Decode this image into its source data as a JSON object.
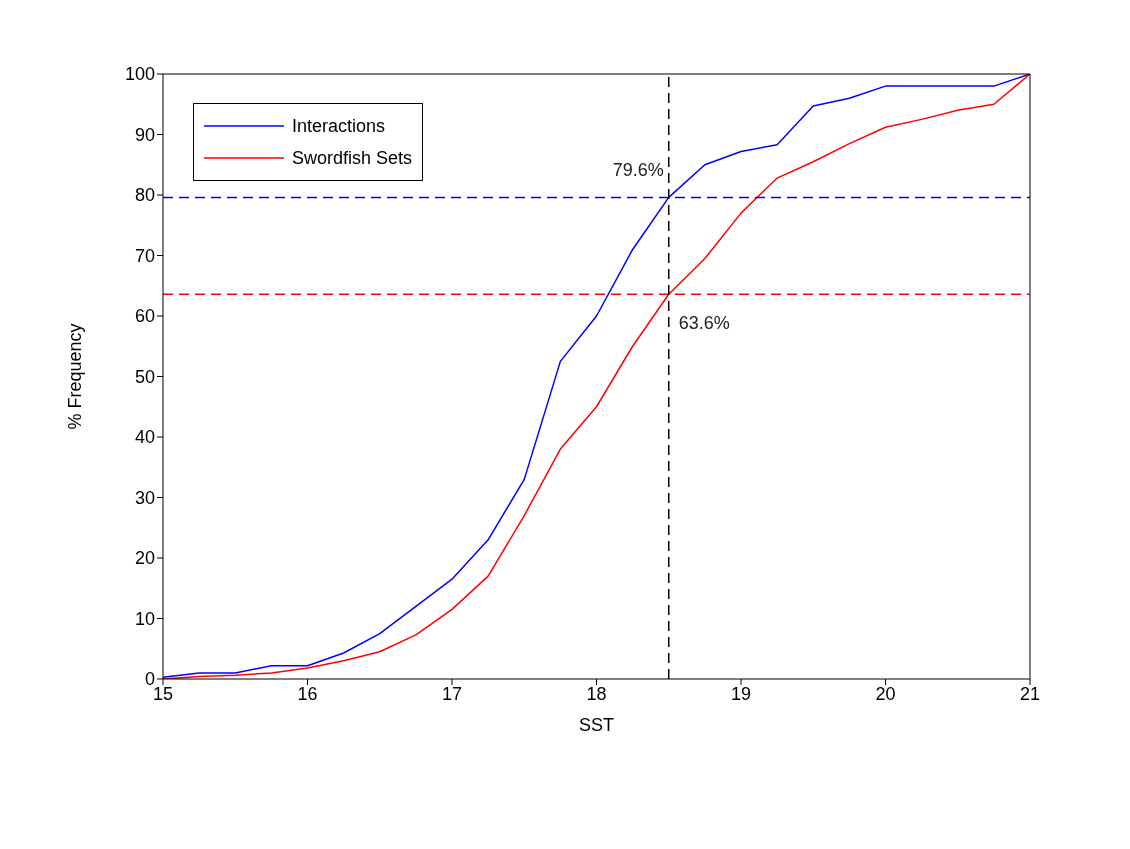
{
  "chart_data": {
    "type": "line",
    "xlabel": "SST",
    "ylabel": "% Frequency",
    "xlim": [
      15,
      21
    ],
    "xticks": [
      15,
      16,
      17,
      18,
      19,
      20,
      21
    ],
    "ylim": [
      0,
      100
    ],
    "yticks": [
      0,
      10,
      20,
      30,
      40,
      50,
      60,
      70,
      80,
      90,
      100
    ],
    "x": [
      15,
      15.25,
      15.5,
      15.75,
      16,
      16.25,
      16.5,
      16.75,
      17,
      17.25,
      17.5,
      17.75,
      18,
      18.25,
      18.5,
      18.75,
      19,
      19.25,
      19.5,
      19.75,
      20,
      20.25,
      20.5,
      20.75,
      21
    ],
    "series": [
      {
        "name": "Interactions",
        "color": "#0000ff",
        "values": [
          0.3,
          1,
          1,
          2.2,
          2.2,
          4.3,
          7.5,
          12,
          16.5,
          23,
          33,
          52.5,
          60,
          71,
          79.6,
          85,
          87.2,
          88.3,
          94.7,
          96,
          98,
          98,
          98,
          98,
          100
        ]
      },
      {
        "name": "Swordfish Sets",
        "color": "#ff0000",
        "values": [
          0,
          0.4,
          0.6,
          1,
          1.8,
          3,
          4.5,
          7.3,
          11.5,
          17,
          27,
          38,
          45,
          55,
          63.6,
          69.5,
          77,
          82.8,
          85.5,
          88.5,
          91.2,
          92.5,
          94,
          95,
          100
        ]
      }
    ],
    "ref_lines": [
      {
        "axis": "y",
        "value": 79.6,
        "color": "#0000ff",
        "line_style": "dashed"
      },
      {
        "axis": "y",
        "value": 63.6,
        "color": "#ff0000",
        "line_style": "dashed"
      },
      {
        "axis": "x",
        "value": 18.5,
        "color": "#000000",
        "line_style": "dashed"
      }
    ],
    "annotations": [
      {
        "text": "79.6%",
        "x": 18.5,
        "y": 79.6
      },
      {
        "text": "63.6%",
        "x": 18.5,
        "y": 63.6
      }
    ],
    "grid": false,
    "legend": "top left",
    "marker": "none",
    "line_style": "solid"
  }
}
